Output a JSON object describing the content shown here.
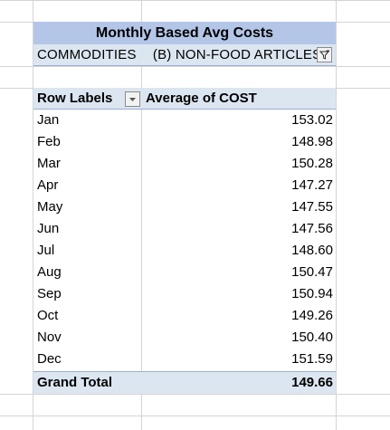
{
  "pivot": {
    "title": "Monthly Based Avg Costs",
    "filter": {
      "field": "COMMODITIES",
      "value": "(B) NON-FOOD ARTICLES"
    },
    "headers": {
      "row_labels": "Row Labels",
      "value_field": "Average of COST"
    },
    "rows": [
      {
        "month": "Jan",
        "value": "153.02"
      },
      {
        "month": "Feb",
        "value": "148.98"
      },
      {
        "month": "Mar",
        "value": "150.28"
      },
      {
        "month": "Apr",
        "value": "147.27"
      },
      {
        "month": "May",
        "value": "147.55"
      },
      {
        "month": "Jun",
        "value": "147.56"
      },
      {
        "month": "Jul",
        "value": "148.60"
      },
      {
        "month": "Aug",
        "value": "150.47"
      },
      {
        "month": "Sep",
        "value": "150.94"
      },
      {
        "month": "Oct",
        "value": "149.26"
      },
      {
        "month": "Nov",
        "value": "150.40"
      },
      {
        "month": "Dec",
        "value": "151.59"
      }
    ],
    "grand_total": {
      "label": "Grand Total",
      "value": "149.66"
    }
  },
  "icons": {
    "filter_button": "filter-funnel-icon",
    "dropdown_button": "chevron-down-icon"
  },
  "colors": {
    "title_fill": "#b4c6e7",
    "header_fill": "#dce6f1",
    "gridline": "#d4d4d4"
  }
}
